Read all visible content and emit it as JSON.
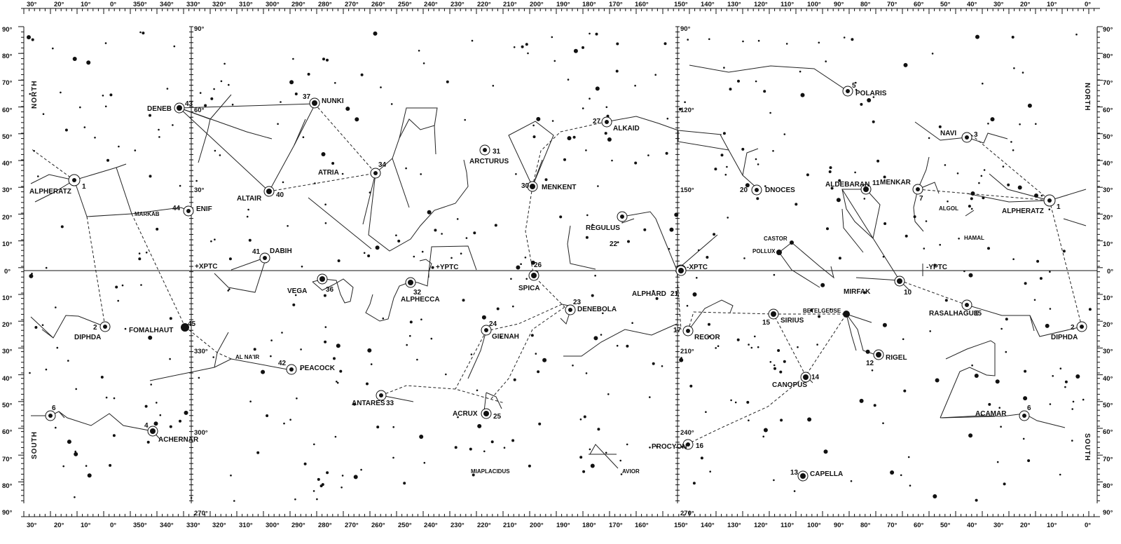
{
  "chart": {
    "directions": {
      "north": "NORTH",
      "south": "SOUTH"
    },
    "top_ra_labels": [
      "30°",
      "20°",
      "10°",
      "0°",
      "350°",
      "340°",
      "330°",
      "320°",
      "310°",
      "300°",
      "290°",
      "280°",
      "270°",
      "260°",
      "250°",
      "240°",
      "230°",
      "220°",
      "210°",
      "200°",
      "190°",
      "180°",
      "170°",
      "160°",
      "150°",
      "140°",
      "130°",
      "120°",
      "110°",
      "100°",
      "90°",
      "80°",
      "70°",
      "60°",
      "50°",
      "40°",
      "30°",
      "20°",
      "10°",
      "0°"
    ],
    "dec_labels": [
      "90°",
      "80°",
      "70°",
      "60°",
      "50°",
      "40°",
      "30°",
      "20°",
      "10°",
      "0°",
      "10°",
      "20°",
      "30°",
      "40°",
      "50°",
      "60°",
      "70°",
      "80°",
      "90°"
    ],
    "panel_labels": {
      "left_top": "90°",
      "left_60": "60°",
      "left_30": "30°",
      "left_330": "330°",
      "left_300": "300°",
      "left_bottom": "270°",
      "right_top": "90°",
      "right_120": "120°",
      "right_150": "150°",
      "right_210": "210°",
      "right_240": "240°",
      "right_bottom": "270°"
    },
    "equator_labels": {
      "xptc_pos": "+XPTC",
      "yptc_pos": "+YPTC",
      "xptc_neg": "-XPTC",
      "yptc_neg": "-YPTC"
    }
  },
  "stars": [
    {
      "name": "ALPHERATZ",
      "num": "1"
    },
    {
      "name": "DIPHDA",
      "num": "2"
    },
    {
      "name": "ACHERNAR",
      "num": "4"
    },
    {
      "name": "POLARIS",
      "num": "5"
    },
    {
      "name": "ACAMAR",
      "num": "6"
    },
    {
      "name": "MENKAR",
      "num": "7"
    },
    {
      "name": "MIRFAK",
      "num": "10"
    },
    {
      "name": "ALDEBARAN",
      "num": "11"
    },
    {
      "name": "RIGEL",
      "num": "12"
    },
    {
      "name": "CAPELLA",
      "num": "13"
    },
    {
      "name": "CANOPUS",
      "num": "14"
    },
    {
      "name": "SIRIUS",
      "num": "15"
    },
    {
      "name": "PROCYON",
      "num": "16"
    },
    {
      "name": "REGOR",
      "num": "17"
    },
    {
      "name": "DNOCES",
      "num": "20"
    },
    {
      "name": "ALPHARD",
      "num": "21"
    },
    {
      "name": "REGULUS",
      "num": "22"
    },
    {
      "name": "DENEBOLA",
      "num": "23"
    },
    {
      "name": "GIENAH",
      "num": "24"
    },
    {
      "name": "ACRUX",
      "num": "25"
    },
    {
      "name": "SPICA",
      "num": "26"
    },
    {
      "name": "ALKAID",
      "num": "27"
    },
    {
      "name": "MENKENT",
      "num": "30"
    },
    {
      "name": "ARCTURUS",
      "num": "31"
    },
    {
      "name": "ALPHECCA",
      "num": "32"
    },
    {
      "name": "ANTARES",
      "num": "33"
    },
    {
      "name": "ATRIA",
      "num": "34"
    },
    {
      "name": "RASALHAGUE",
      "num": "35"
    },
    {
      "name": "VEGA",
      "num": "36"
    },
    {
      "name": "NUNKI",
      "num": "37"
    },
    {
      "name": "ALTAIR",
      "num": "40"
    },
    {
      "name": "DABIH",
      "num": "41"
    },
    {
      "name": "PEACOCK",
      "num": "42"
    },
    {
      "name": "DENEB",
      "num": "43"
    },
    {
      "name": "ENIF",
      "num": "44"
    },
    {
      "name": "FOMALHAUT",
      "num": "45"
    },
    {
      "name": "NAVI",
      "num": "3"
    }
  ],
  "minor_labels": [
    "MARKAB",
    "AL NA'IR",
    "CASTOR",
    "POLLUX",
    "BETELGEUSE",
    "ALGOL",
    "HAMAL",
    "MIAPLACIDUS",
    "AVIOR"
  ]
}
